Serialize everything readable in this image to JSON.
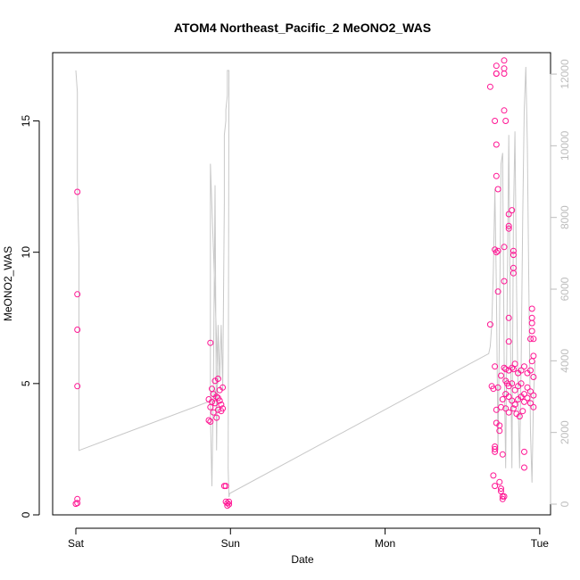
{
  "chart_data": {
    "type": "scatter",
    "title": "ATOM4 Northeast_Pacific_2 MeONO2_WAS",
    "xlabel": "Date",
    "ylabel": "MeONO2_WAS",
    "x_ticks": [
      "Sat",
      "Sun",
      "Mon",
      "Tue"
    ],
    "x_tick_days": [
      0,
      1,
      2,
      3
    ],
    "xlim_days": [
      -0.15,
      3.07
    ],
    "ylim": [
      0,
      17.6
    ],
    "y_ticks": [
      0,
      5,
      10,
      15
    ],
    "secondary_ylim": [
      0,
      12300
    ],
    "secondary_y_ticks": [
      0,
      2000,
      4000,
      6000,
      8000,
      10000,
      12000
    ],
    "colors": {
      "points": "#ff1493",
      "secondary_line": "#c8c8c8",
      "secondary_axis": "#bdbdbd",
      "axis": "#000000"
    },
    "series": [
      {
        "type": "points",
        "values": [
          [
            0.01,
            12.3
          ],
          [
            0.01,
            8.4
          ],
          [
            0.01,
            7.05
          ],
          [
            0.01,
            4.9
          ],
          [
            0.01,
            0.6
          ],
          [
            0.01,
            0.45
          ],
          [
            0.0,
            0.42
          ],
          [
            0.87,
            6.55
          ],
          [
            0.9,
            5.1
          ],
          [
            0.92,
            5.18
          ],
          [
            0.88,
            4.8
          ],
          [
            0.93,
            4.75
          ],
          [
            0.95,
            4.85
          ],
          [
            0.89,
            4.6
          ],
          [
            0.91,
            4.5
          ],
          [
            0.86,
            4.4
          ],
          [
            0.88,
            4.3
          ],
          [
            0.9,
            4.25
          ],
          [
            0.87,
            4.1
          ],
          [
            0.92,
            4.0
          ],
          [
            0.89,
            3.9
          ],
          [
            0.86,
            3.6
          ],
          [
            0.87,
            3.55
          ],
          [
            0.92,
            4.45
          ],
          [
            0.93,
            4.35
          ],
          [
            0.94,
            4.2
          ],
          [
            0.95,
            4.05
          ],
          [
            0.91,
            3.7
          ],
          [
            0.94,
            3.95
          ],
          [
            0.96,
            1.1
          ],
          [
            0.97,
            1.1
          ],
          [
            0.97,
            0.5
          ],
          [
            0.98,
            0.45
          ],
          [
            0.99,
            0.5
          ],
          [
            0.98,
            0.35
          ],
          [
            0.99,
            0.4
          ],
          [
            2.68,
            16.3
          ],
          [
            2.72,
            17.1
          ],
          [
            2.72,
            16.8
          ],
          [
            2.77,
            17.3
          ],
          [
            2.77,
            17.0
          ],
          [
            2.77,
            16.8
          ],
          [
            2.72,
            16.8
          ],
          [
            2.77,
            15.4
          ],
          [
            2.71,
            15.0
          ],
          [
            2.78,
            15.0
          ],
          [
            2.72,
            14.1
          ],
          [
            2.72,
            12.9
          ],
          [
            2.73,
            12.4
          ],
          [
            2.8,
            11.45
          ],
          [
            2.8,
            10.9
          ],
          [
            2.8,
            11.0
          ],
          [
            2.82,
            11.6
          ],
          [
            2.77,
            10.2
          ],
          [
            2.71,
            10.1
          ],
          [
            2.72,
            10.0
          ],
          [
            2.73,
            10.05
          ],
          [
            2.83,
            10.05
          ],
          [
            2.83,
            9.9
          ],
          [
            2.83,
            9.4
          ],
          [
            2.83,
            9.2
          ],
          [
            2.77,
            8.9
          ],
          [
            2.73,
            8.5
          ],
          [
            2.68,
            7.25
          ],
          [
            2.8,
            7.5
          ],
          [
            2.8,
            6.6
          ],
          [
            2.95,
            7.85
          ],
          [
            2.95,
            7.5
          ],
          [
            2.95,
            7.3
          ],
          [
            2.95,
            7.0
          ],
          [
            2.96,
            6.7
          ],
          [
            2.94,
            6.7
          ],
          [
            2.96,
            6.05
          ],
          [
            2.95,
            5.85
          ],
          [
            2.71,
            5.65
          ],
          [
            2.77,
            5.6
          ],
          [
            2.78,
            5.55
          ],
          [
            2.8,
            5.5
          ],
          [
            2.82,
            5.6
          ],
          [
            2.83,
            5.55
          ],
          [
            2.84,
            5.75
          ],
          [
            2.86,
            5.4
          ],
          [
            2.88,
            5.5
          ],
          [
            2.9,
            5.65
          ],
          [
            2.92,
            5.4
          ],
          [
            2.94,
            5.5
          ],
          [
            2.96,
            5.25
          ],
          [
            2.75,
            5.3
          ],
          [
            2.78,
            5.1
          ],
          [
            2.79,
            5.0
          ],
          [
            2.8,
            4.9
          ],
          [
            2.82,
            5.0
          ],
          [
            2.84,
            4.75
          ],
          [
            2.86,
            4.9
          ],
          [
            2.88,
            5.0
          ],
          [
            2.9,
            4.6
          ],
          [
            2.92,
            4.85
          ],
          [
            2.94,
            4.7
          ],
          [
            2.96,
            4.55
          ],
          [
            2.69,
            4.9
          ],
          [
            2.7,
            4.8
          ],
          [
            2.73,
            4.85
          ],
          [
            2.76,
            4.4
          ],
          [
            2.78,
            4.6
          ],
          [
            2.8,
            4.5
          ],
          [
            2.82,
            4.35
          ],
          [
            2.84,
            4.2
          ],
          [
            2.86,
            4.4
          ],
          [
            2.88,
            4.5
          ],
          [
            2.9,
            4.3
          ],
          [
            2.92,
            4.45
          ],
          [
            2.94,
            4.25
          ],
          [
            2.96,
            4.1
          ],
          [
            2.75,
            4.1
          ],
          [
            2.72,
            4.0
          ],
          [
            2.78,
            4.05
          ],
          [
            2.8,
            3.9
          ],
          [
            2.83,
            4.05
          ],
          [
            2.85,
            3.85
          ],
          [
            2.87,
            3.75
          ],
          [
            2.89,
            3.95
          ],
          [
            2.74,
            3.2
          ],
          [
            2.72,
            3.5
          ],
          [
            2.74,
            3.4
          ],
          [
            2.71,
            2.6
          ],
          [
            2.71,
            2.5
          ],
          [
            2.71,
            2.4
          ],
          [
            2.76,
            2.3
          ],
          [
            2.9,
            2.4
          ],
          [
            2.9,
            1.8
          ],
          [
            2.7,
            1.5
          ],
          [
            2.71,
            1.1
          ],
          [
            2.74,
            1.25
          ],
          [
            2.75,
            1.0
          ],
          [
            2.75,
            0.9
          ],
          [
            2.76,
            0.7
          ],
          [
            2.76,
            0.6
          ],
          [
            2.77,
            0.7
          ]
        ]
      },
      {
        "type": "line",
        "axis": "secondary",
        "values": [
          [
            0.0,
            12100
          ],
          [
            0.01,
            11500
          ],
          [
            0.01,
            9000
          ],
          [
            0.02,
            7000
          ],
          [
            0.02,
            1500
          ],
          [
            0.885,
            2900
          ],
          [
            0.9,
            3100
          ],
          [
            0.92,
            3400
          ],
          [
            0.87,
            9500
          ],
          [
            0.87,
            2500
          ],
          [
            0.88,
            500
          ],
          [
            0.89,
            3500
          ],
          [
            0.9,
            8900
          ],
          [
            0.91,
            1500
          ],
          [
            0.92,
            5000
          ],
          [
            0.93,
            3500
          ],
          [
            0.94,
            5000
          ],
          [
            0.95,
            3200
          ],
          [
            0.96,
            8400
          ],
          [
            0.96,
            10300
          ],
          [
            0.97,
            10700
          ],
          [
            0.97,
            11000
          ],
          [
            0.98,
            11400
          ],
          [
            0.98,
            12100
          ],
          [
            0.99,
            12100
          ],
          [
            0.985,
            1000
          ],
          [
            0.99,
            200
          ],
          [
            0.995,
            300
          ],
          [
            2.67,
            4200
          ],
          [
            2.68,
            4400
          ],
          [
            2.69,
            5000
          ],
          [
            2.7,
            6500
          ],
          [
            2.71,
            8800
          ],
          [
            2.72,
            6000
          ],
          [
            2.73,
            1500
          ],
          [
            2.74,
            5000
          ],
          [
            2.75,
            9500
          ],
          [
            2.76,
            9800
          ],
          [
            2.77,
            4000
          ],
          [
            2.78,
            1000
          ],
          [
            2.79,
            6000
          ],
          [
            2.8,
            10300
          ],
          [
            2.81,
            5000
          ],
          [
            2.82,
            1000
          ],
          [
            2.83,
            8000
          ],
          [
            2.84,
            10400
          ],
          [
            2.85,
            6000
          ],
          [
            2.86,
            3000
          ],
          [
            2.87,
            1000
          ],
          [
            2.88,
            4000
          ],
          [
            2.89,
            8000
          ],
          [
            2.9,
            11000
          ],
          [
            2.91,
            12200
          ],
          [
            2.92,
            10000
          ],
          [
            2.93,
            6000
          ],
          [
            2.94,
            2000
          ],
          [
            2.95,
            600
          ],
          [
            2.96,
            3000
          ],
          [
            2.97,
            4000
          ]
        ]
      }
    ]
  }
}
